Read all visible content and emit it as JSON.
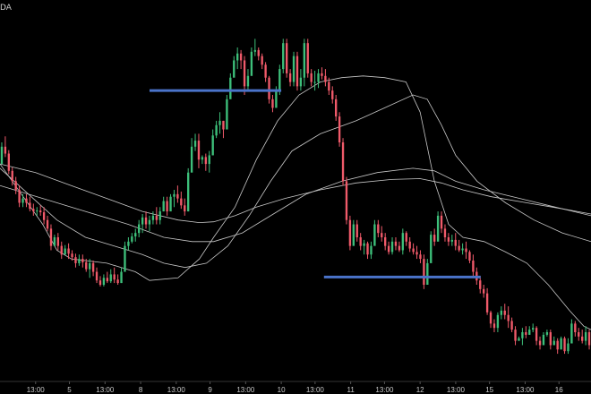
{
  "header": {
    "symbol_text": "DA"
  },
  "colors": {
    "background": "#000000",
    "bull": "#3dbf7a",
    "bear": "#f05a6a",
    "ma_line": "#c8c8c8",
    "level_line": "#4a73c9",
    "axis_text": "#c8c8c8"
  },
  "chart_data": {
    "type": "candlestick",
    "title": "",
    "xlabel": "",
    "ylabel": "",
    "grid": false,
    "legend": "none",
    "ylim": [
      0,
      440
    ],
    "xlim": [
      0,
      166
    ],
    "x_ticks": [
      {
        "x": 10,
        "label": "13:00"
      },
      {
        "x": 19.5,
        "label": "5"
      },
      {
        "x": 29.5,
        "label": "13:00"
      },
      {
        "x": 39.5,
        "label": "8"
      },
      {
        "x": 49.5,
        "label": "13:00"
      },
      {
        "x": 59,
        "label": "9"
      },
      {
        "x": 69,
        "label": "13:00"
      },
      {
        "x": 79,
        "label": "10"
      },
      {
        "x": 88.5,
        "label": "13:00"
      },
      {
        "x": 98.5,
        "label": "11"
      },
      {
        "x": 108,
        "label": "13:00"
      },
      {
        "x": 118,
        "label": "12"
      },
      {
        "x": 128,
        "label": "13:00"
      },
      {
        "x": 137.5,
        "label": "15"
      },
      {
        "x": 147.5,
        "label": "13:00"
      },
      {
        "x": 157,
        "label": "16"
      }
    ],
    "ohlc": [
      [
        250,
        250,
        275,
        270
      ],
      [
        270,
        258,
        282,
        262
      ],
      [
        262,
        238,
        266,
        242
      ],
      [
        242,
        225,
        246,
        230
      ],
      [
        230,
        215,
        235,
        220
      ],
      [
        220,
        200,
        225,
        205
      ],
      [
        205,
        200,
        215,
        210
      ],
      [
        210,
        200,
        215,
        205
      ],
      [
        205,
        195,
        212,
        198
      ],
      [
        198,
        190,
        204,
        195
      ],
      [
        195,
        190,
        200,
        196
      ],
      [
        196,
        190,
        202,
        194
      ],
      [
        194,
        180,
        200,
        185
      ],
      [
        185,
        172,
        190,
        175
      ],
      [
        175,
        150,
        180,
        155
      ],
      [
        155,
        158,
        168,
        165
      ],
      [
        165,
        150,
        170,
        155
      ],
      [
        155,
        140,
        160,
        145
      ],
      [
        145,
        145,
        156,
        152
      ],
      [
        152,
        140,
        158,
        146
      ],
      [
        146,
        138,
        150,
        142
      ],
      [
        142,
        130,
        146,
        135
      ],
      [
        135,
        132,
        145,
        140
      ],
      [
        140,
        130,
        145,
        136
      ],
      [
        136,
        125,
        140,
        128
      ],
      [
        128,
        118,
        140,
        135
      ],
      [
        135,
        120,
        138,
        125
      ],
      [
        125,
        112,
        130,
        115
      ],
      [
        115,
        108,
        120,
        110
      ],
      [
        110,
        108,
        122,
        118
      ],
      [
        118,
        112,
        125,
        114
      ],
      [
        114,
        112,
        128,
        122
      ],
      [
        122,
        112,
        130,
        116
      ],
      [
        116,
        110,
        122,
        112
      ],
      [
        112,
        112,
        130,
        125
      ],
      [
        125,
        135,
        160,
        155
      ],
      [
        155,
        150,
        165,
        160
      ],
      [
        160,
        158,
        170,
        166
      ],
      [
        166,
        160,
        175,
        170
      ],
      [
        170,
        165,
        185,
        180
      ],
      [
        180,
        170,
        192,
        188
      ],
      [
        188,
        175,
        195,
        180
      ],
      [
        180,
        172,
        190,
        185
      ],
      [
        185,
        180,
        195,
        190
      ],
      [
        190,
        180,
        200,
        185
      ],
      [
        185,
        180,
        200,
        195
      ],
      [
        195,
        195,
        212,
        207
      ],
      [
        207,
        190,
        212,
        195
      ],
      [
        195,
        200,
        215,
        212
      ],
      [
        212,
        200,
        220,
        215
      ],
      [
        215,
        205,
        225,
        210
      ],
      [
        210,
        198,
        218,
        202
      ],
      [
        202,
        190,
        210,
        195
      ],
      [
        195,
        195,
        245,
        240
      ],
      [
        240,
        255,
        280,
        270
      ],
      [
        270,
        265,
        285,
        277
      ],
      [
        277,
        245,
        285,
        255
      ],
      [
        255,
        250,
        260,
        258
      ],
      [
        258,
        242,
        262,
        250
      ],
      [
        250,
        240,
        265,
        260
      ],
      [
        260,
        260,
        290,
        283
      ],
      [
        283,
        280,
        300,
        295
      ],
      [
        295,
        285,
        310,
        300
      ],
      [
        300,
        280,
        300,
        290
      ],
      [
        290,
        300,
        330,
        325
      ],
      [
        325,
        330,
        355,
        350
      ],
      [
        350,
        355,
        375,
        370
      ],
      [
        370,
        360,
        385,
        378
      ],
      [
        378,
        360,
        382,
        370
      ],
      [
        370,
        330,
        375,
        340
      ],
      [
        340,
        335,
        360,
        352
      ],
      [
        352,
        360,
        385,
        380
      ],
      [
        380,
        375,
        395,
        382
      ],
      [
        382,
        370,
        385,
        375
      ],
      [
        375,
        360,
        378,
        365
      ],
      [
        365,
        345,
        368,
        350
      ],
      [
        350,
        320,
        352,
        325
      ],
      [
        325,
        310,
        330,
        315
      ],
      [
        315,
        318,
        340,
        335
      ],
      [
        335,
        330,
        365,
        360
      ],
      [
        360,
        355,
        395,
        390
      ],
      [
        390,
        350,
        395,
        355
      ],
      [
        355,
        340,
        360,
        345
      ],
      [
        345,
        340,
        380,
        375
      ],
      [
        375,
        335,
        380,
        340
      ],
      [
        340,
        335,
        360,
        350
      ],
      [
        350,
        340,
        395,
        390
      ],
      [
        390,
        350,
        395,
        355
      ],
      [
        355,
        340,
        360,
        345
      ],
      [
        345,
        335,
        358,
        345
      ],
      [
        345,
        338,
        360,
        355
      ],
      [
        355,
        348,
        362,
        352
      ],
      [
        352,
        340,
        360,
        345
      ],
      [
        345,
        330,
        350,
        335
      ],
      [
        335,
        320,
        340,
        325
      ],
      [
        325,
        300,
        330,
        305
      ],
      [
        305,
        270,
        310,
        275
      ],
      [
        275,
        225,
        280,
        230
      ],
      [
        230,
        180,
        235,
        185
      ],
      [
        185,
        150,
        190,
        155
      ],
      [
        155,
        160,
        185,
        180
      ],
      [
        180,
        160,
        185,
        165
      ],
      [
        165,
        150,
        170,
        155
      ],
      [
        155,
        145,
        162,
        158
      ],
      [
        158,
        140,
        160,
        145
      ],
      [
        145,
        140,
        160,
        155
      ],
      [
        155,
        160,
        185,
        180
      ],
      [
        180,
        165,
        185,
        170
      ],
      [
        170,
        160,
        178,
        165
      ],
      [
        165,
        150,
        170,
        155
      ],
      [
        155,
        145,
        160,
        148
      ],
      [
        148,
        145,
        165,
        160
      ],
      [
        160,
        150,
        165,
        155
      ],
      [
        155,
        148,
        160,
        150
      ],
      [
        150,
        145,
        175,
        170
      ],
      [
        170,
        155,
        172,
        160
      ],
      [
        160,
        148,
        165,
        152
      ],
      [
        152,
        145,
        158,
        148
      ],
      [
        148,
        140,
        155,
        145
      ],
      [
        145,
        135,
        150,
        140
      ],
      [
        140,
        105,
        145,
        110
      ],
      [
        110,
        115,
        140,
        135
      ],
      [
        135,
        150,
        172,
        168
      ],
      [
        168,
        155,
        175,
        160
      ],
      [
        160,
        170,
        195,
        190
      ],
      [
        190,
        170,
        195,
        175
      ],
      [
        175,
        160,
        180,
        165
      ],
      [
        165,
        155,
        170,
        160
      ],
      [
        160,
        155,
        168,
        162
      ],
      [
        162,
        150,
        170,
        155
      ],
      [
        155,
        148,
        162,
        150
      ],
      [
        150,
        145,
        158,
        152
      ],
      [
        152,
        140,
        160,
        148
      ],
      [
        148,
        135,
        150,
        138
      ],
      [
        138,
        120,
        145,
        125
      ],
      [
        125,
        110,
        130,
        115
      ],
      [
        115,
        100,
        120,
        105
      ],
      [
        105,
        95,
        110,
        100
      ],
      [
        100,
        75,
        106,
        78
      ],
      [
        78,
        60,
        80,
        65
      ],
      [
        65,
        55,
        70,
        60
      ],
      [
        60,
        55,
        78,
        75
      ],
      [
        75,
        70,
        85,
        80
      ],
      [
        80,
        70,
        88,
        75
      ],
      [
        75,
        60,
        85,
        68
      ],
      [
        68,
        55,
        72,
        58
      ],
      [
        58,
        40,
        62,
        45
      ],
      [
        45,
        45,
        50,
        48
      ],
      [
        48,
        40,
        60,
        55
      ],
      [
        55,
        48,
        62,
        52
      ],
      [
        52,
        52,
        62,
        58
      ],
      [
        58,
        55,
        65,
        60
      ],
      [
        60,
        40,
        62,
        45
      ],
      [
        45,
        35,
        50,
        40
      ],
      [
        40,
        40,
        55,
        52
      ],
      [
        52,
        50,
        58,
        55
      ],
      [
        55,
        35,
        58,
        40
      ],
      [
        40,
        42,
        50,
        45
      ],
      [
        45,
        30,
        48,
        35
      ],
      [
        35,
        35,
        50,
        48
      ],
      [
        48,
        30,
        50,
        33
      ],
      [
        33,
        30,
        48,
        42
      ],
      [
        42,
        45,
        70,
        65
      ],
      [
        65,
        50,
        68,
        55
      ],
      [
        55,
        45,
        60,
        50
      ],
      [
        50,
        42,
        58,
        45
      ],
      [
        45,
        40,
        62,
        55
      ],
      [
        55,
        35,
        58,
        40
      ]
    ],
    "moving_averages": [
      {
        "period": "short",
        "points": [
          [
            0,
            250
          ],
          [
            6,
            215
          ],
          [
            12,
            180
          ],
          [
            16,
            150
          ],
          [
            20,
            140
          ],
          [
            30,
            135
          ],
          [
            38,
            125
          ],
          [
            42,
            115
          ],
          [
            50,
            118
          ],
          [
            56,
            140
          ],
          [
            60,
            165
          ],
          [
            66,
            200
          ],
          [
            72,
            255
          ],
          [
            78,
            300
          ],
          [
            84,
            330
          ],
          [
            90,
            345
          ],
          [
            96,
            350
          ],
          [
            102,
            352
          ],
          [
            108,
            350
          ],
          [
            114,
            345
          ],
          [
            118,
            310
          ],
          [
            122,
            230
          ],
          [
            126,
            180
          ],
          [
            130,
            165
          ],
          [
            136,
            160
          ],
          [
            142,
            148
          ],
          [
            148,
            135
          ],
          [
            154,
            110
          ],
          [
            160,
            80
          ],
          [
            164,
            62
          ],
          [
            166,
            58
          ]
        ]
      },
      {
        "period": "medium",
        "points": [
          [
            0,
            245
          ],
          [
            8,
            215
          ],
          [
            16,
            185
          ],
          [
            24,
            165
          ],
          [
            32,
            155
          ],
          [
            40,
            145
          ],
          [
            46,
            135
          ],
          [
            52,
            130
          ],
          [
            58,
            135
          ],
          [
            64,
            155
          ],
          [
            70,
            190
          ],
          [
            76,
            230
          ],
          [
            82,
            265
          ],
          [
            90,
            285
          ],
          [
            100,
            300
          ],
          [
            108,
            315
          ],
          [
            116,
            330
          ],
          [
            120,
            325
          ],
          [
            124,
            295
          ],
          [
            128,
            260
          ],
          [
            134,
            230
          ],
          [
            142,
            205
          ],
          [
            150,
            185
          ],
          [
            158,
            170
          ],
          [
            166,
            160
          ]
        ]
      },
      {
        "period": "long",
        "points": [
          [
            0,
            225
          ],
          [
            12,
            210
          ],
          [
            24,
            195
          ],
          [
            36,
            180
          ],
          [
            46,
            165
          ],
          [
            54,
            160
          ],
          [
            60,
            160
          ],
          [
            68,
            170
          ],
          [
            76,
            190
          ],
          [
            86,
            215
          ],
          [
            96,
            230
          ],
          [
            106,
            240
          ],
          [
            116,
            245
          ],
          [
            122,
            242
          ],
          [
            128,
            230
          ],
          [
            136,
            220
          ],
          [
            146,
            210
          ],
          [
            156,
            200
          ],
          [
            166,
            190
          ]
        ]
      },
      {
        "period": "slow",
        "points": [
          [
            0,
            250
          ],
          [
            10,
            240
          ],
          [
            20,
            225
          ],
          [
            30,
            210
          ],
          [
            40,
            195
          ],
          [
            50,
            185
          ],
          [
            56,
            182
          ],
          [
            60,
            183
          ],
          [
            66,
            190
          ],
          [
            72,
            200
          ],
          [
            80,
            210
          ],
          [
            90,
            220
          ],
          [
            100,
            228
          ],
          [
            110,
            232
          ],
          [
            118,
            233
          ],
          [
            124,
            228
          ],
          [
            130,
            220
          ],
          [
            138,
            212
          ],
          [
            148,
            205
          ],
          [
            158,
            198
          ],
          [
            166,
            192
          ]
        ]
      }
    ],
    "horizontal_levels": [
      {
        "y": 335,
        "x_start": 42,
        "x_end": 79
      },
      {
        "y": 119,
        "x_start": 91,
        "x_end": 135
      }
    ]
  }
}
